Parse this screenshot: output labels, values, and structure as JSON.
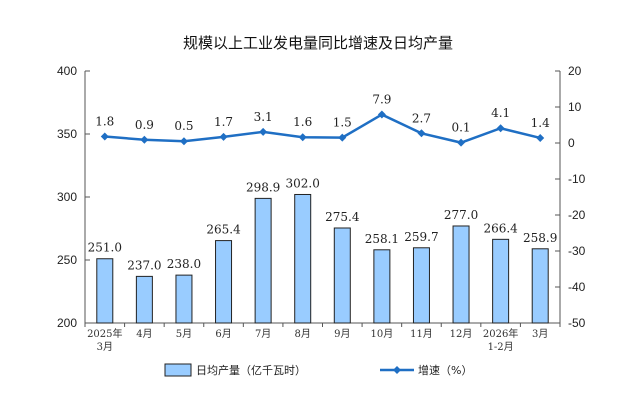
{
  "chart_data": {
    "type": "bar+line",
    "title": "规模以上工业发电量同比增速及日均产量",
    "categories": [
      [
        "2025年",
        "3月"
      ],
      [
        "4月"
      ],
      [
        "5月"
      ],
      [
        "6月"
      ],
      [
        "7月"
      ],
      [
        "8月"
      ],
      [
        "9月"
      ],
      [
        "10月"
      ],
      [
        "11月"
      ],
      [
        "12月"
      ],
      [
        "2026年",
        "1-2月"
      ],
      [
        "3月"
      ]
    ],
    "series": [
      {
        "name": "日均产量（亿千瓦时）",
        "type": "bar",
        "axis": "left",
        "color": "#99ccff",
        "values": [
          251.0,
          237.0,
          238.0,
          265.4,
          298.9,
          302.0,
          275.4,
          258.1,
          259.7,
          277.0,
          266.4,
          258.9
        ]
      },
      {
        "name": "增速（%）",
        "type": "line",
        "axis": "right",
        "color": "#1f6fc4",
        "values": [
          1.8,
          0.9,
          0.5,
          1.7,
          3.1,
          1.6,
          1.5,
          7.9,
          2.7,
          0.1,
          4.1,
          1.4
        ]
      }
    ],
    "left_axis": {
      "range": [
        200,
        400
      ],
      "ticks": [
        200,
        250,
        300,
        350,
        400
      ]
    },
    "right_axis": {
      "range": [
        -50,
        20
      ],
      "ticks": [
        -50,
        -40,
        -30,
        -20,
        -10,
        0,
        10,
        20
      ]
    },
    "grid": false,
    "legend_placement": "bottom"
  }
}
